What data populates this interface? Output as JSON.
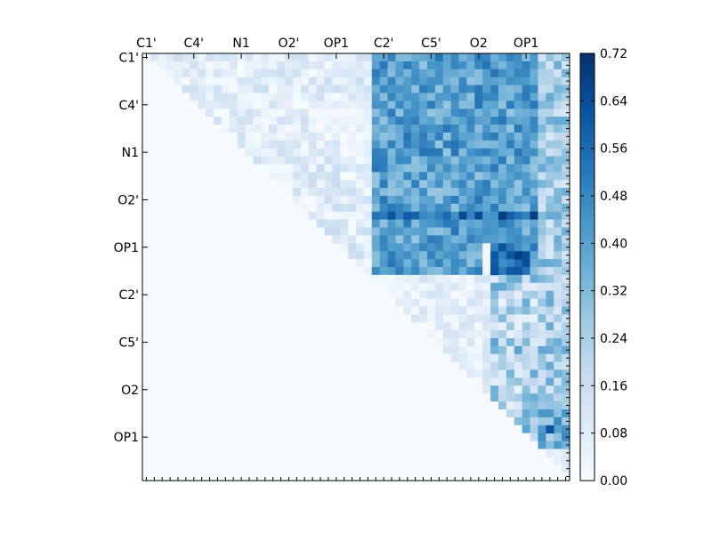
{
  "chart_data": {
    "type": "heatmap",
    "title": "",
    "xlabel": "",
    "ylabel": "",
    "grid": false,
    "size": 54,
    "colormap": "Blues",
    "vmin": 0.0,
    "vmax": 0.72,
    "x_ticks": [
      {
        "label": "C1'",
        "index": 0
      },
      {
        "label": "C4'",
        "index": 6
      },
      {
        "label": "N1",
        "index": 12
      },
      {
        "label": "O2'",
        "index": 18
      },
      {
        "label": "OP1",
        "index": 24
      },
      {
        "label": "C2'",
        "index": 30
      },
      {
        "label": "C5'",
        "index": 36
      },
      {
        "label": "O2",
        "index": 42
      },
      {
        "label": "OP1",
        "index": 48
      }
    ],
    "y_ticks": [
      {
        "label": "C1'",
        "index": 0
      },
      {
        "label": "C4'",
        "index": 6
      },
      {
        "label": "N1",
        "index": 12
      },
      {
        "label": "O2'",
        "index": 18
      },
      {
        "label": "OP1",
        "index": 24
      },
      {
        "label": "C2'",
        "index": 30
      },
      {
        "label": "C5'",
        "index": 36
      },
      {
        "label": "O2",
        "index": 42
      },
      {
        "label": "OP1",
        "index": 48
      }
    ],
    "colorbar_ticks": [
      "0.00",
      "0.08",
      "0.16",
      "0.24",
      "0.32",
      "0.40",
      "0.48",
      "0.56",
      "0.64",
      "0.72"
    ],
    "colorbar_values": [
      0.0,
      0.08,
      0.16,
      0.24,
      0.32,
      0.4,
      0.48,
      0.56,
      0.64,
      0.72
    ],
    "regions": [
      {
        "rows": [
          0,
          14
        ],
        "cols": [
          1,
          29
        ],
        "value_range": [
          0.0,
          0.18
        ],
        "note": "light upper-triangle band"
      },
      {
        "rows": [
          0,
          27
        ],
        "cols": [
          29,
          50
        ],
        "value_range": [
          0.25,
          0.7
        ],
        "note": "dense block"
      },
      {
        "rows": [
          0,
          53
        ],
        "cols": [
          50,
          53
        ],
        "value_range": [
          0.08,
          0.5
        ],
        "note": "right columns"
      },
      {
        "rows": [
          28,
          50
        ],
        "cols": [
          32,
          50
        ],
        "value_range": [
          0.0,
          0.45
        ],
        "note": "lower triangle tail"
      }
    ],
    "bright_cells": [
      {
        "row": 20,
        "col": 45,
        "value": 0.68
      },
      {
        "row": 25,
        "col": 47,
        "value": 0.68
      },
      {
        "row": 26,
        "col": 44,
        "value": 0.6
      },
      {
        "row": 27,
        "col": 44,
        "value": 0.62
      },
      {
        "row": 47,
        "col": 51,
        "value": 0.62
      }
    ]
  }
}
